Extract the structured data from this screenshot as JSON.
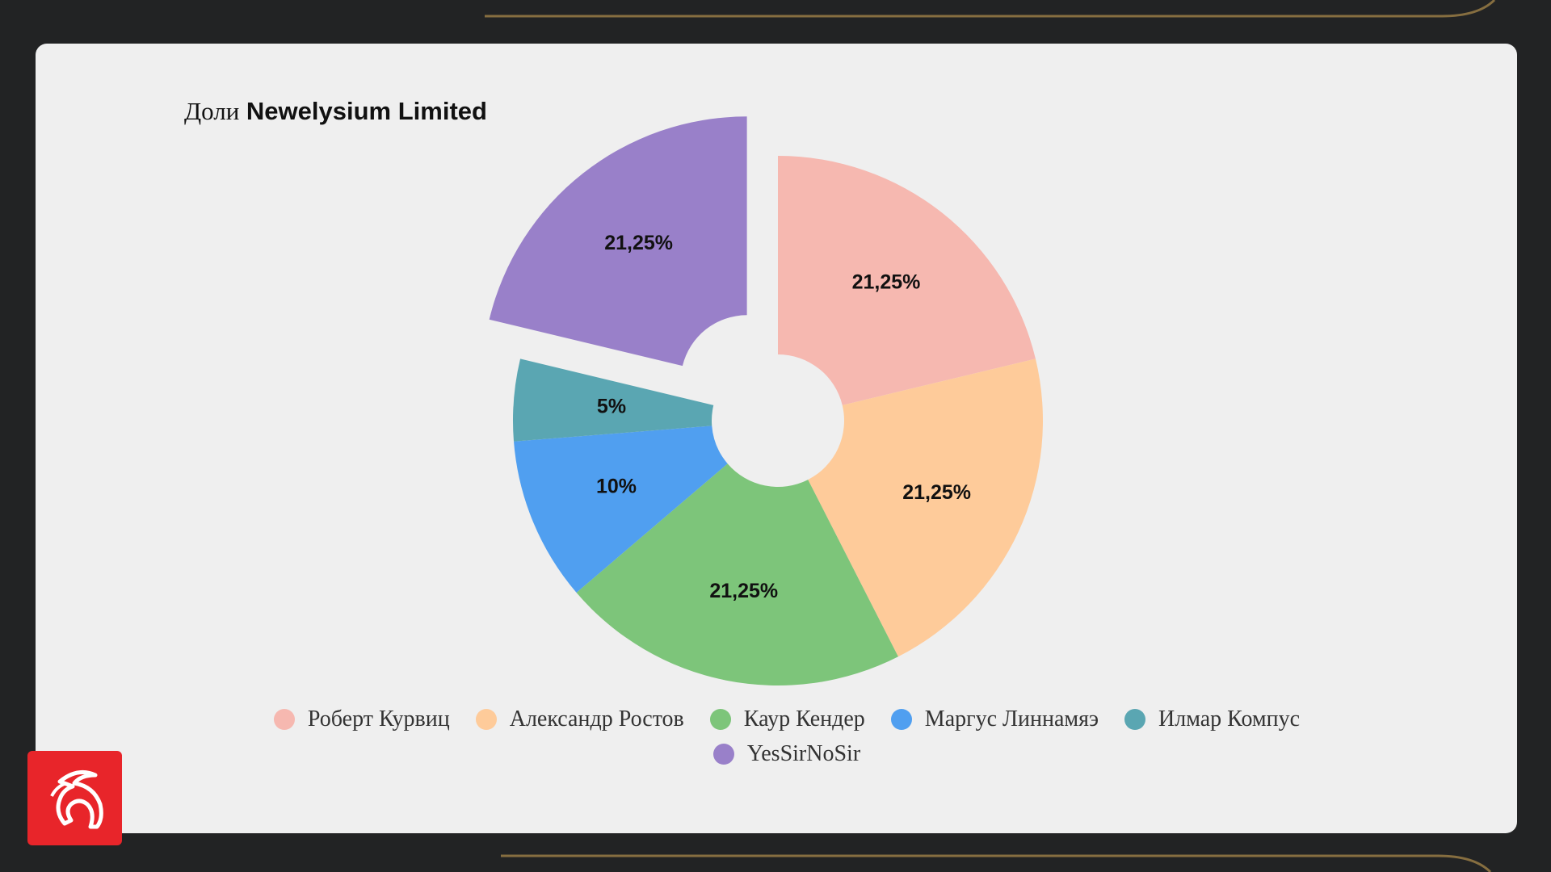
{
  "page": {
    "title_prefix": "Доли",
    "title_company": "Newelysium Limited"
  },
  "colors": {
    "background": "#222324",
    "panel": "#efefef",
    "accent_gold": "#a8884a",
    "logo_red": "#e8252a"
  },
  "chart_data": {
    "type": "pie",
    "style": "donut-exploded",
    "title": "Доли Newelysium Limited",
    "categories": [
      "Роберт Курвиц",
      "Александр Ростов",
      "Каур Кендер",
      "Маргус Линнамяэ",
      "Илмар Компус",
      "YesSirNoSir"
    ],
    "values": [
      21.25,
      21.25,
      21.25,
      10,
      5,
      21.25
    ],
    "labels": [
      "21,25%",
      "21,25%",
      "21,25%",
      "10%",
      "5%",
      "21,25%"
    ],
    "colors": [
      "#f6b8b0",
      "#fecb9a",
      "#7dc57a",
      "#509ff0",
      "#5aa6b2",
      "#9980c9"
    ],
    "exploded": [
      false,
      false,
      false,
      false,
      false,
      true
    ],
    "legend_position": "bottom"
  }
}
